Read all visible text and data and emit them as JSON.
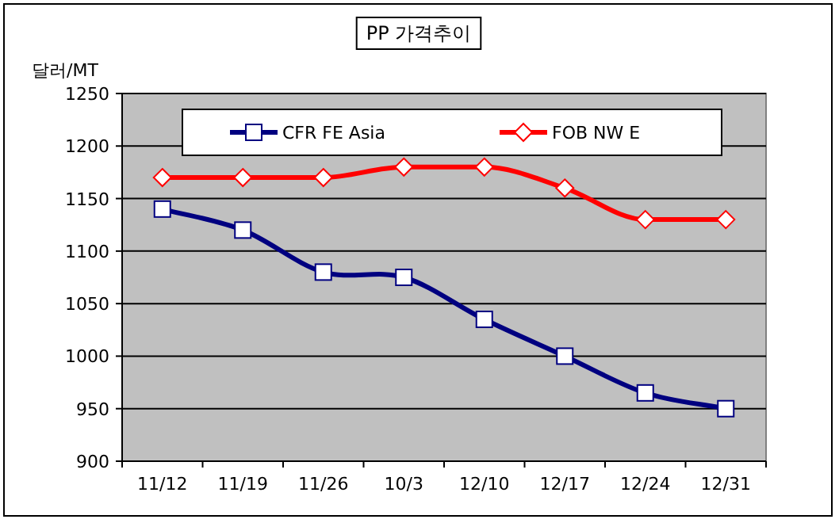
{
  "chart_data": {
    "type": "line",
    "title": "PP 가격추이",
    "ylabel": "달러/MT",
    "categories": [
      "11/12",
      "11/19",
      "11/26",
      "10/3",
      "12/10",
      "12/17",
      "12/24",
      "12/31"
    ],
    "series": [
      {
        "name": "CFR FE Asia",
        "color": "#000080",
        "marker": "square",
        "values": [
          1140,
          1120,
          1080,
          1075,
          1035,
          1000,
          965,
          950
        ]
      },
      {
        "name": "FOB NW E",
        "color": "#ff0000",
        "marker": "diamond",
        "values": [
          1170,
          1170,
          1170,
          1180,
          1180,
          1160,
          1130,
          1130
        ]
      }
    ],
    "ylim": [
      900,
      1250
    ],
    "yticks": [
      900,
      950,
      1000,
      1050,
      1100,
      1150,
      1200,
      1250
    ],
    "grid": "y",
    "legend": "top"
  }
}
